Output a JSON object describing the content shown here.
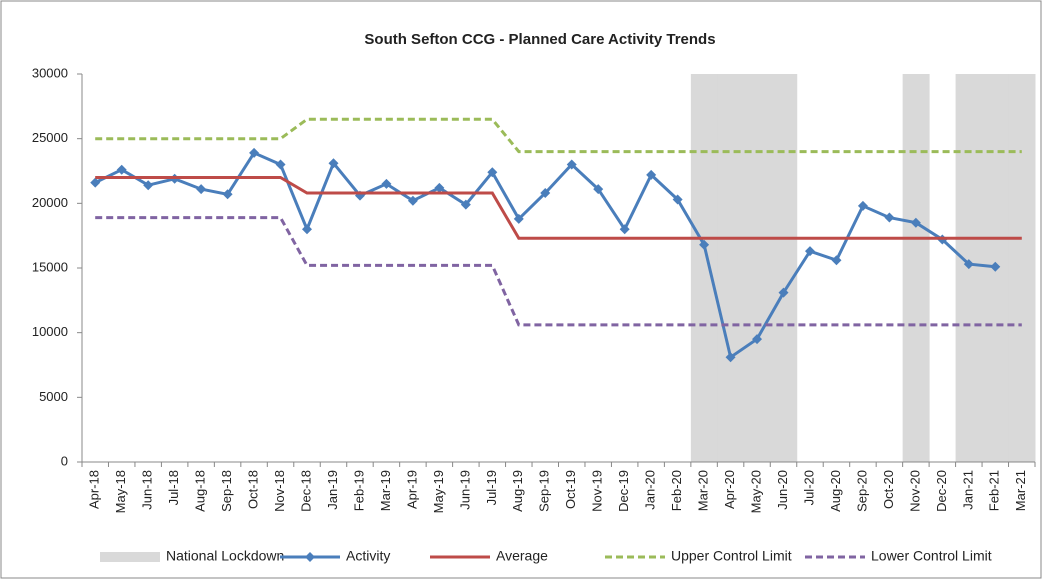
{
  "chart_data": {
    "type": "line",
    "title": "South Sefton CCG - Planned Care Activity Trends",
    "categories": [
      "Apr-18",
      "May-18",
      "Jun-18",
      "Jul-18",
      "Aug-18",
      "Sep-18",
      "Oct-18",
      "Nov-18",
      "Dec-18",
      "Jan-19",
      "Feb-19",
      "Mar-19",
      "Apr-19",
      "May-19",
      "Jun-19",
      "Jul-19",
      "Aug-19",
      "Sep-19",
      "Oct-19",
      "Nov-19",
      "Dec-19",
      "Jan-20",
      "Feb-20",
      "Mar-20",
      "Apr-20",
      "May-20",
      "Jun-20",
      "Jul-20",
      "Aug-20",
      "Sep-20",
      "Oct-20",
      "Nov-20",
      "Dec-20",
      "Jan-21",
      "Feb-21",
      "Mar-21"
    ],
    "series": [
      {
        "name": "National Lockdown",
        "type": "bar",
        "color": "#d9d9d9",
        "values": [
          null,
          null,
          null,
          null,
          null,
          null,
          null,
          null,
          null,
          null,
          null,
          null,
          null,
          null,
          null,
          null,
          null,
          null,
          null,
          null,
          null,
          null,
          null,
          30000,
          30000,
          30000,
          30000,
          null,
          null,
          null,
          null,
          30000,
          null,
          30000,
          30000,
          30000
        ]
      },
      {
        "name": "Activity",
        "type": "line",
        "color": "#4a7ebb",
        "marker": "diamond",
        "values": [
          21600,
          22600,
          21400,
          21900,
          21100,
          20700,
          23900,
          23000,
          18000,
          23100,
          20600,
          21500,
          20200,
          21200,
          19900,
          22400,
          18800,
          20800,
          23000,
          21100,
          18000,
          22200,
          20300,
          16800,
          8100,
          9500,
          13100,
          16300,
          15600,
          19800,
          18900,
          18500,
          17200,
          15300,
          15100,
          null
        ]
      },
      {
        "name": "Average",
        "type": "line",
        "color": "#be4b48",
        "values": [
          22000,
          22000,
          22000,
          22000,
          22000,
          22000,
          22000,
          22000,
          20800,
          20800,
          20800,
          20800,
          20800,
          20800,
          20800,
          20800,
          17300,
          17300,
          17300,
          17300,
          17300,
          17300,
          17300,
          17300,
          17300,
          17300,
          17300,
          17300,
          17300,
          17300,
          17300,
          17300,
          17300,
          17300,
          17300,
          17300
        ]
      },
      {
        "name": "Upper Control Limit",
        "type": "line",
        "color": "#9bbb59",
        "dashed": true,
        "values": [
          25000,
          25000,
          25000,
          25000,
          25000,
          25000,
          25000,
          25000,
          26500,
          26500,
          26500,
          26500,
          26500,
          26500,
          26500,
          26500,
          24000,
          24000,
          24000,
          24000,
          24000,
          24000,
          24000,
          24000,
          24000,
          24000,
          24000,
          24000,
          24000,
          24000,
          24000,
          24000,
          24000,
          24000,
          24000,
          24000
        ]
      },
      {
        "name": "Lower Control Limit",
        "type": "line",
        "color": "#8064a2",
        "dashed": true,
        "values": [
          18900,
          18900,
          18900,
          18900,
          18900,
          18900,
          18900,
          18900,
          15200,
          15200,
          15200,
          15200,
          15200,
          15200,
          15200,
          15200,
          10600,
          10600,
          10600,
          10600,
          10600,
          10600,
          10600,
          10600,
          10600,
          10600,
          10600,
          10600,
          10600,
          10600,
          10600,
          10600,
          10600,
          10600,
          10600,
          10600
        ]
      }
    ],
    "ylim": [
      0,
      30000
    ],
    "yticks": [
      0,
      5000,
      10000,
      15000,
      20000,
      25000,
      30000
    ],
    "grid": false,
    "legend": "bottom"
  }
}
